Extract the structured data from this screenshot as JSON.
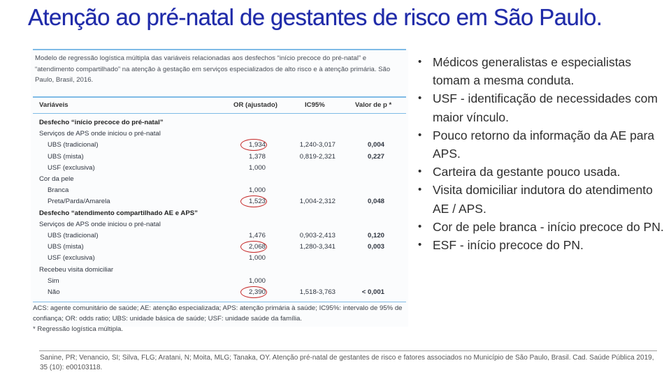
{
  "title": "Atenção ao pré-natal de gestantes de risco em São Paulo.",
  "table": {
    "caption": "Modelo de regressão logística múltipla das variáveis relacionadas aos desfechos “início precoce do pré-natal” e “atendimento compartilhado” na atenção à gestação em serviços especializados de alto risco e à atenção primária. São Paulo, Brasil, 2016.",
    "headers": [
      "Variáveis",
      "OR (ajustado)",
      "IC95%",
      "Valor de p *"
    ],
    "rows": [
      {
        "label": "Desfecho “início precoce do pré-natal”",
        "or": "",
        "ic": "",
        "p": "",
        "type": "section",
        "circled": false
      },
      {
        "label": "Serviços de APS onde iniciou o pré-natal",
        "or": "",
        "ic": "",
        "p": "",
        "type": "group",
        "circled": false
      },
      {
        "label": "UBS (tradicional)",
        "or": "1,934",
        "ic": "1,240-3,017",
        "p": "0,004",
        "type": "item",
        "circled": true
      },
      {
        "label": "UBS (mista)",
        "or": "1,378",
        "ic": "0,819-2,321",
        "p": "0,227",
        "type": "item",
        "circled": false
      },
      {
        "label": "USF (exclusiva)",
        "or": "1,000",
        "ic": "",
        "p": "",
        "type": "item",
        "circled": false
      },
      {
        "label": "Cor da pele",
        "or": "",
        "ic": "",
        "p": "",
        "type": "group",
        "circled": false
      },
      {
        "label": "Branca",
        "or": "1,000",
        "ic": "",
        "p": "",
        "type": "item",
        "circled": false
      },
      {
        "label": "Preta/Parda/Amarela",
        "or": "1,523",
        "ic": "1,004-2,312",
        "p": "0,048",
        "type": "item",
        "circled": true
      },
      {
        "label": "Desfecho “atendimento compartilhado AE e APS”",
        "or": "",
        "ic": "",
        "p": "",
        "type": "section",
        "circled": false
      },
      {
        "label": "Serviços de APS onde iniciou o pré-natal",
        "or": "",
        "ic": "",
        "p": "",
        "type": "group",
        "circled": false
      },
      {
        "label": "UBS (tradicional)",
        "or": "1,476",
        "ic": "0,903-2,413",
        "p": "0,120",
        "type": "item",
        "circled": false
      },
      {
        "label": "UBS (mista)",
        "or": "2,068",
        "ic": "1,280-3,341",
        "p": "0,003",
        "type": "item",
        "circled": true
      },
      {
        "label": "USF (exclusiva)",
        "or": "1,000",
        "ic": "",
        "p": "",
        "type": "item",
        "circled": false
      },
      {
        "label": "Recebeu visita domiciliar",
        "or": "",
        "ic": "",
        "p": "",
        "type": "group",
        "circled": false
      },
      {
        "label": "Sim",
        "or": "1,000",
        "ic": "",
        "p": "",
        "type": "item",
        "circled": false
      },
      {
        "label": "Não",
        "or": "2,390",
        "ic": "1,518-3,763",
        "p": "< 0,001",
        "type": "item",
        "circled": true
      }
    ],
    "footnote": "ACS: agente comunitário de saúde; AE: atenção especializada; APS: atenção primária à saúde; IC95%: intervalo de 95% de confiança; OR: odds ratio; UBS: unidade básica de saúde; USF: unidade saúde da família.",
    "footnote_mark": "* Regressão logística múltipla."
  },
  "bullets": [
    "Médicos generalistas e especialistas tomam a mesma conduta.",
    "USF - identificação de necessidades com maior vínculo.",
    "Pouco retorno da informação da AE para APS.",
    "Carteira da gestante pouco usada.",
    "Visita domiciliar indutora do atendimento AE / APS.",
    "Cor de pele branca - início precoce do PN.",
    "ESF - início precoce do PN."
  ],
  "citation": "Sanine, PR; Venancio, SI; Silva, FLG; Aratani, N; Moita, MLG; Tanaka, OY. Atenção pré-natal de gestantes de risco e fatores associados no Município de São Paulo, Brasil. Cad. Saúde Pública 2019, 35 (10): e00103118.",
  "colors": {
    "title": "#1f2aa8",
    "accent_rule": "#7fbbe6",
    "circle": "#c62828"
  }
}
